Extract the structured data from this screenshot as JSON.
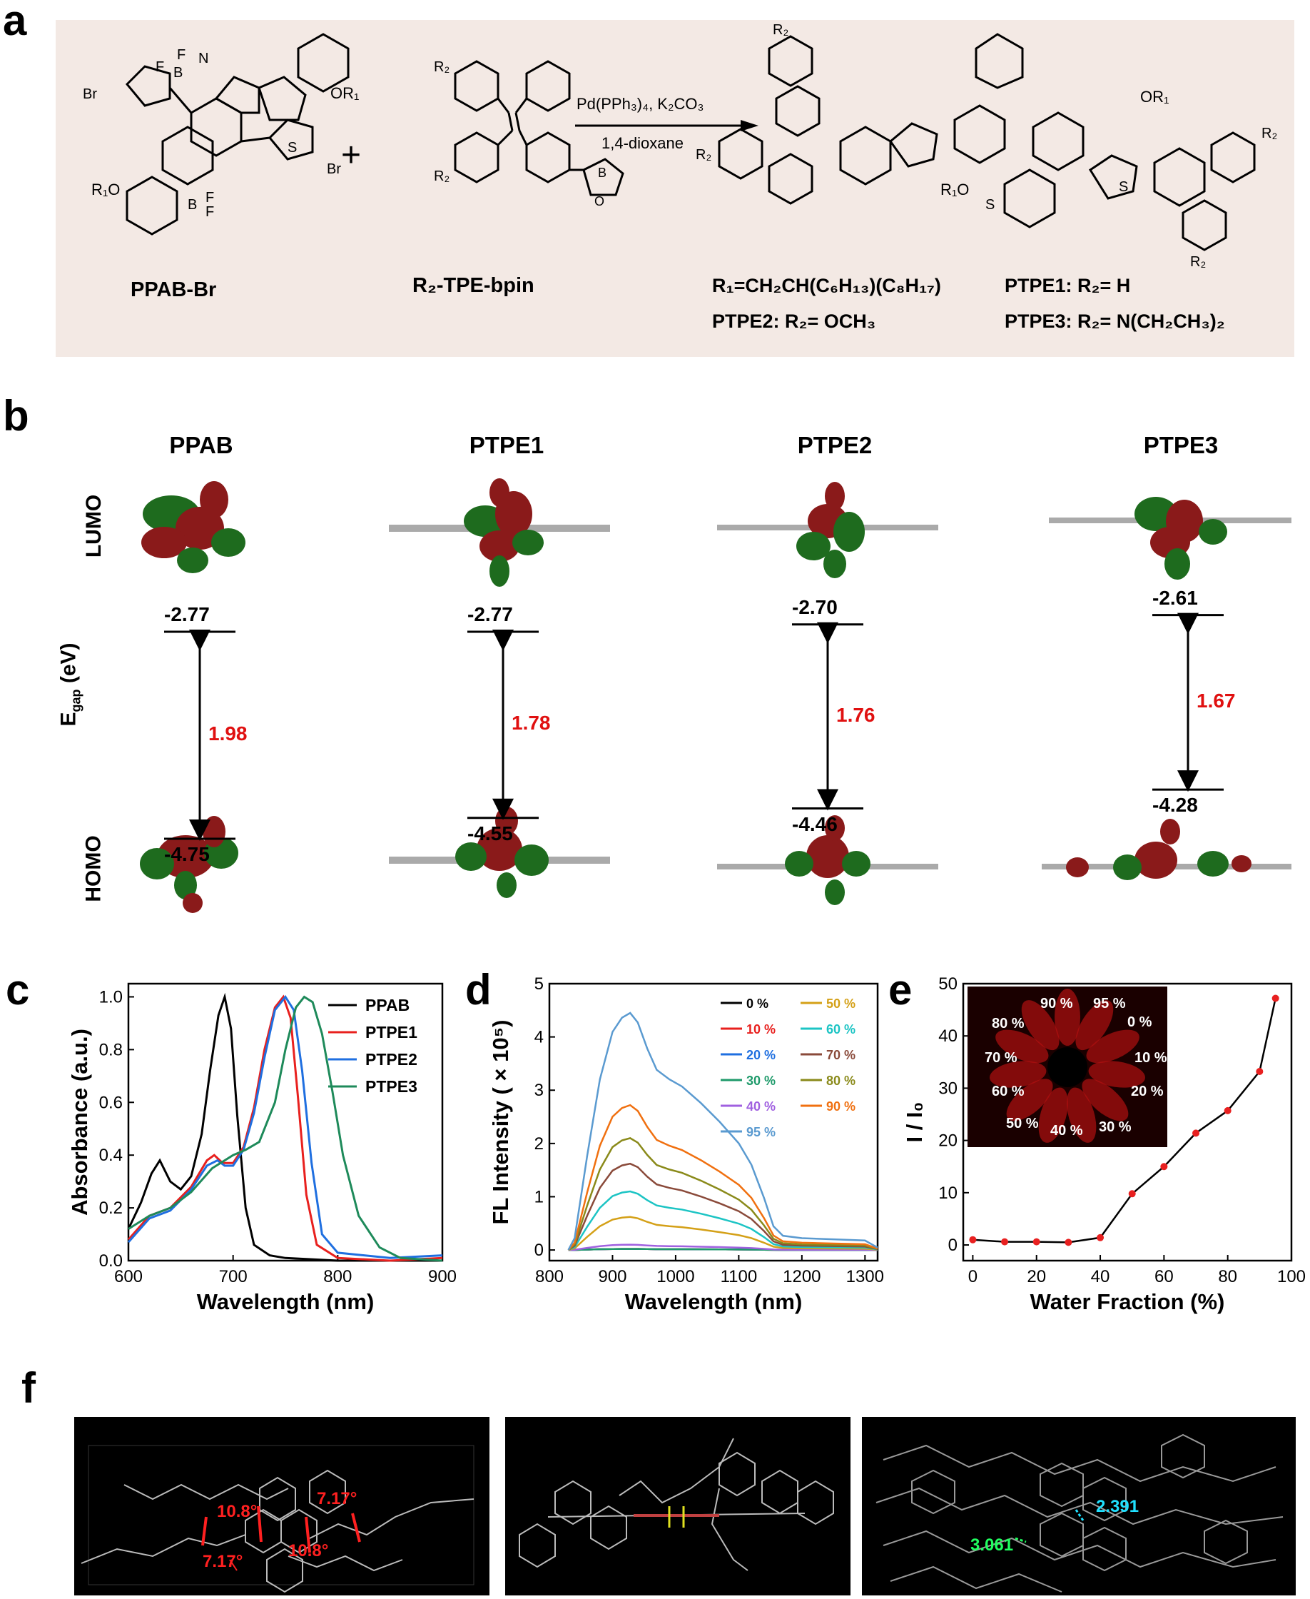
{
  "panel_labels": {
    "a": "a",
    "b": "b",
    "c": "c",
    "d": "d",
    "e": "e",
    "f": "f"
  },
  "panel_a": {
    "reactant1_label": "PPAB-Br",
    "reactant2_label": "R₂-TPE-bpin",
    "plus": "+",
    "conditions_top": "Pd(PPh₃)₄, K₂CO₃",
    "conditions_bottom": "1,4-dioxane",
    "r1_def": "R₁=CH₂CH(C₆H₁₃)(C₈H₁₇)",
    "ptpe1_def": "PTPE1: R₂= H",
    "ptpe2_def": "PTPE2: R₂= OCH₃",
    "ptpe3_def": "PTPE3: R₂= N(CH₂CH₃)₂",
    "atom_labels": {
      "Br": "Br",
      "F": "F",
      "B": "B",
      "N": "N",
      "S": "S",
      "OR1": "OR₁",
      "R1O": "R₁O",
      "R2": "R₂",
      "O": "O"
    }
  },
  "panel_b": {
    "row_lumo": "LUMO",
    "row_homo": "HOMO",
    "row_egap": "E",
    "row_egap_sub": "gap",
    "row_egap_unit": "(eV)",
    "columns": [
      {
        "name": "PPAB",
        "lumo": "-2.77",
        "homo": "-4.75",
        "gap": "1.98"
      },
      {
        "name": "PTPE1",
        "lumo": "-2.77",
        "homo": "-4.55",
        "gap": "1.78"
      },
      {
        "name": "PTPE2",
        "lumo": "-2.70",
        "homo": "-4.46",
        "gap": "1.76"
      },
      {
        "name": "PTPE3",
        "lumo": "-2.61",
        "homo": "-4.28",
        "gap": "1.67"
      }
    ]
  },
  "chart_data": [
    {
      "id": "c",
      "type": "line",
      "xlabel": "Wavelength (nm)",
      "ylabel": "Absorbance (a.u.)",
      "xlim": [
        600,
        900
      ],
      "ylim": [
        0,
        1.05
      ],
      "xticks": [
        600,
        700,
        800,
        900
      ],
      "yticks": [
        0.0,
        0.2,
        0.4,
        0.6,
        0.8,
        1.0
      ],
      "legend_position": "top-right",
      "series": [
        {
          "name": "PPAB",
          "color": "#000000",
          "x": [
            600,
            612,
            622,
            630,
            640,
            650,
            660,
            670,
            678,
            686,
            692,
            698,
            704,
            712,
            720,
            735,
            750,
            800,
            900
          ],
          "y": [
            0.12,
            0.22,
            0.33,
            0.38,
            0.3,
            0.27,
            0.32,
            0.48,
            0.72,
            0.93,
            1.0,
            0.88,
            0.55,
            0.2,
            0.06,
            0.02,
            0.01,
            0.0,
            0.0
          ]
        },
        {
          "name": "PTPE1",
          "color": "#e8201e",
          "x": [
            600,
            620,
            640,
            660,
            675,
            682,
            690,
            700,
            710,
            720,
            730,
            740,
            748,
            755,
            762,
            770,
            780,
            800,
            850,
            900
          ],
          "y": [
            0.08,
            0.17,
            0.2,
            0.28,
            0.38,
            0.4,
            0.37,
            0.37,
            0.43,
            0.58,
            0.8,
            0.96,
            1.0,
            0.92,
            0.62,
            0.25,
            0.06,
            0.01,
            0.0,
            0.01
          ]
        },
        {
          "name": "PTPE2",
          "color": "#1f6fe0",
          "x": [
            600,
            620,
            640,
            660,
            675,
            685,
            692,
            700,
            710,
            720,
            730,
            740,
            750,
            758,
            766,
            775,
            785,
            800,
            850,
            900
          ],
          "y": [
            0.07,
            0.16,
            0.19,
            0.27,
            0.36,
            0.38,
            0.36,
            0.36,
            0.42,
            0.56,
            0.77,
            0.95,
            1.0,
            0.95,
            0.72,
            0.37,
            0.1,
            0.03,
            0.01,
            0.02
          ]
        },
        {
          "name": "PTPE3",
          "color": "#1e8a5a",
          "x": [
            600,
            620,
            640,
            660,
            680,
            700,
            712,
            725,
            740,
            750,
            760,
            768,
            776,
            785,
            795,
            805,
            820,
            840,
            860,
            900
          ],
          "y": [
            0.12,
            0.17,
            0.2,
            0.26,
            0.35,
            0.4,
            0.42,
            0.45,
            0.6,
            0.8,
            0.96,
            1.0,
            0.98,
            0.86,
            0.64,
            0.4,
            0.17,
            0.05,
            0.01,
            0.0
          ]
        }
      ]
    },
    {
      "id": "d",
      "type": "line",
      "xlabel": "Wavelength (nm)",
      "ylabel": "FL Intensity ( × 10⁵)",
      "xlim": [
        800,
        1320
      ],
      "ylim": [
        -0.2,
        5
      ],
      "xticks": [
        800,
        900,
        1000,
        1100,
        1200,
        1300
      ],
      "yticks": [
        0,
        1,
        2,
        3,
        4,
        5
      ],
      "legend_position": "top-right",
      "series": [
        {
          "name": "0 %",
          "color": "#000000",
          "scale": 0.02
        },
        {
          "name": "10 %",
          "color": "#e8201e",
          "scale": 0.02
        },
        {
          "name": "20 %",
          "color": "#1f6fe0",
          "scale": 0.02
        },
        {
          "name": "30 %",
          "color": "#1e9a6a",
          "scale": 0.02
        },
        {
          "name": "40 %",
          "color": "#a060e0",
          "scale": 0.1
        },
        {
          "name": "50 %",
          "color": "#d4a017",
          "scale": 0.62
        },
        {
          "name": "60 %",
          "color": "#1cc4c4",
          "scale": 1.1
        },
        {
          "name": "70 %",
          "color": "#8a4a3a",
          "scale": 1.62
        },
        {
          "name": "80 %",
          "color": "#8a8a1a",
          "scale": 2.1
        },
        {
          "name": "90 %",
          "color": "#f07010",
          "scale": 2.72
        },
        {
          "name": "95 %",
          "color": "#5a9ad0",
          "scale": 4.45
        }
      ]
    },
    {
      "id": "e",
      "type": "line",
      "xlabel": "Water Fraction  (%)",
      "ylabel": "I / I₀",
      "xlim": [
        -3,
        100
      ],
      "ylim": [
        -3,
        50
      ],
      "xticks": [
        0,
        20,
        40,
        60,
        80,
        100
      ],
      "yticks": [
        0,
        10,
        20,
        30,
        40,
        50
      ],
      "x": [
        0,
        10,
        20,
        30,
        40,
        50,
        60,
        70,
        80,
        90,
        95
      ],
      "y": [
        1.0,
        0.6,
        0.6,
        0.5,
        1.4,
        9.8,
        15.0,
        21.4,
        25.7,
        33.2,
        47.2
      ],
      "inset_labels": [
        "90 %",
        "95 %",
        "80 %",
        "0 %",
        "70 %",
        "10 %",
        "60 %",
        "20 %",
        "50 %",
        "40 %",
        "30 %"
      ]
    }
  ],
  "panel_f": {
    "angle_labels": [
      "10.8°",
      "7.17°",
      "7.17°",
      "10.8°"
    ],
    "distance_labels": [
      "2.391",
      "3.061"
    ]
  }
}
